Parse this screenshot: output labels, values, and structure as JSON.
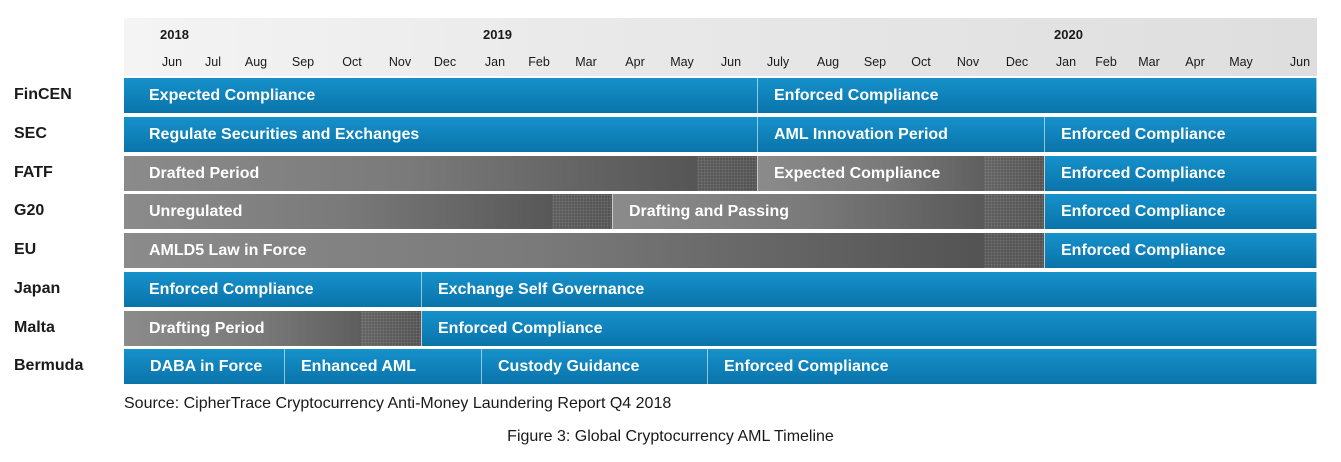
{
  "timeline": {
    "years": [
      "2018",
      "2019",
      "2020"
    ],
    "months": [
      "Jun",
      "Jul",
      "Aug",
      "Sep",
      "Oct",
      "Nov",
      "Dec",
      "Jan",
      "Feb",
      "Mar",
      "Apr",
      "May",
      "Jun",
      "July",
      "Aug",
      "Sep",
      "Oct",
      "Nov",
      "Dec",
      "Jan",
      "Feb",
      "Mar",
      "Apr",
      "May",
      "Jun"
    ],
    "rows": [
      {
        "label": "FinCEN",
        "bars": [
          {
            "text": "Expected Compliance",
            "color": "blue"
          },
          {
            "text": "Enforced Compliance",
            "color": "blue"
          }
        ]
      },
      {
        "label": "SEC",
        "bars": [
          {
            "text": "Regulate Securities and Exchanges",
            "color": "blue"
          },
          {
            "text": "AML Innovation Period",
            "color": "blue"
          },
          {
            "text": "Enforced Compliance",
            "color": "blue"
          }
        ]
      },
      {
        "label": "FATF",
        "bars": [
          {
            "text": "Drafted Period",
            "color": "gray"
          },
          {
            "text": "Expected Compliance",
            "color": "gray"
          },
          {
            "text": "Enforced Compliance",
            "color": "blue"
          }
        ]
      },
      {
        "label": "G20",
        "bars": [
          {
            "text": "Unregulated",
            "color": "gray"
          },
          {
            "text": "Drafting and Passing",
            "color": "gray"
          },
          {
            "text": "Enforced Compliance",
            "color": "blue"
          }
        ]
      },
      {
        "label": "EU",
        "bars": [
          {
            "text": "AMLD5 Law in Force",
            "color": "gray"
          },
          {
            "text": "Enforced Compliance",
            "color": "blue"
          }
        ]
      },
      {
        "label": "Japan",
        "bars": [
          {
            "text": "Enforced Compliance",
            "color": "blue"
          },
          {
            "text": "Exchange Self Governance",
            "color": "blue"
          }
        ]
      },
      {
        "label": "Malta",
        "bars": [
          {
            "text": "Drafting Period",
            "color": "gray"
          },
          {
            "text": "Enforced Compliance",
            "color": "blue"
          }
        ]
      },
      {
        "label": "Bermuda",
        "bars": [
          {
            "text": "DABA in Force",
            "color": "blue"
          },
          {
            "text": "Enhanced AML",
            "color": "blue"
          },
          {
            "text": "Custody Guidance",
            "color": "blue"
          },
          {
            "text": "Enforced Compliance",
            "color": "blue"
          }
        ]
      }
    ]
  },
  "colors": {
    "blue": "#0a7fbd",
    "gray": "#7a7a7a"
  },
  "source": "Source: CipherTrace Cryptocurrency Anti-Money Laundering Report Q4 2018",
  "caption": "Figure 3: Global Cryptocurrency AML Timeline"
}
